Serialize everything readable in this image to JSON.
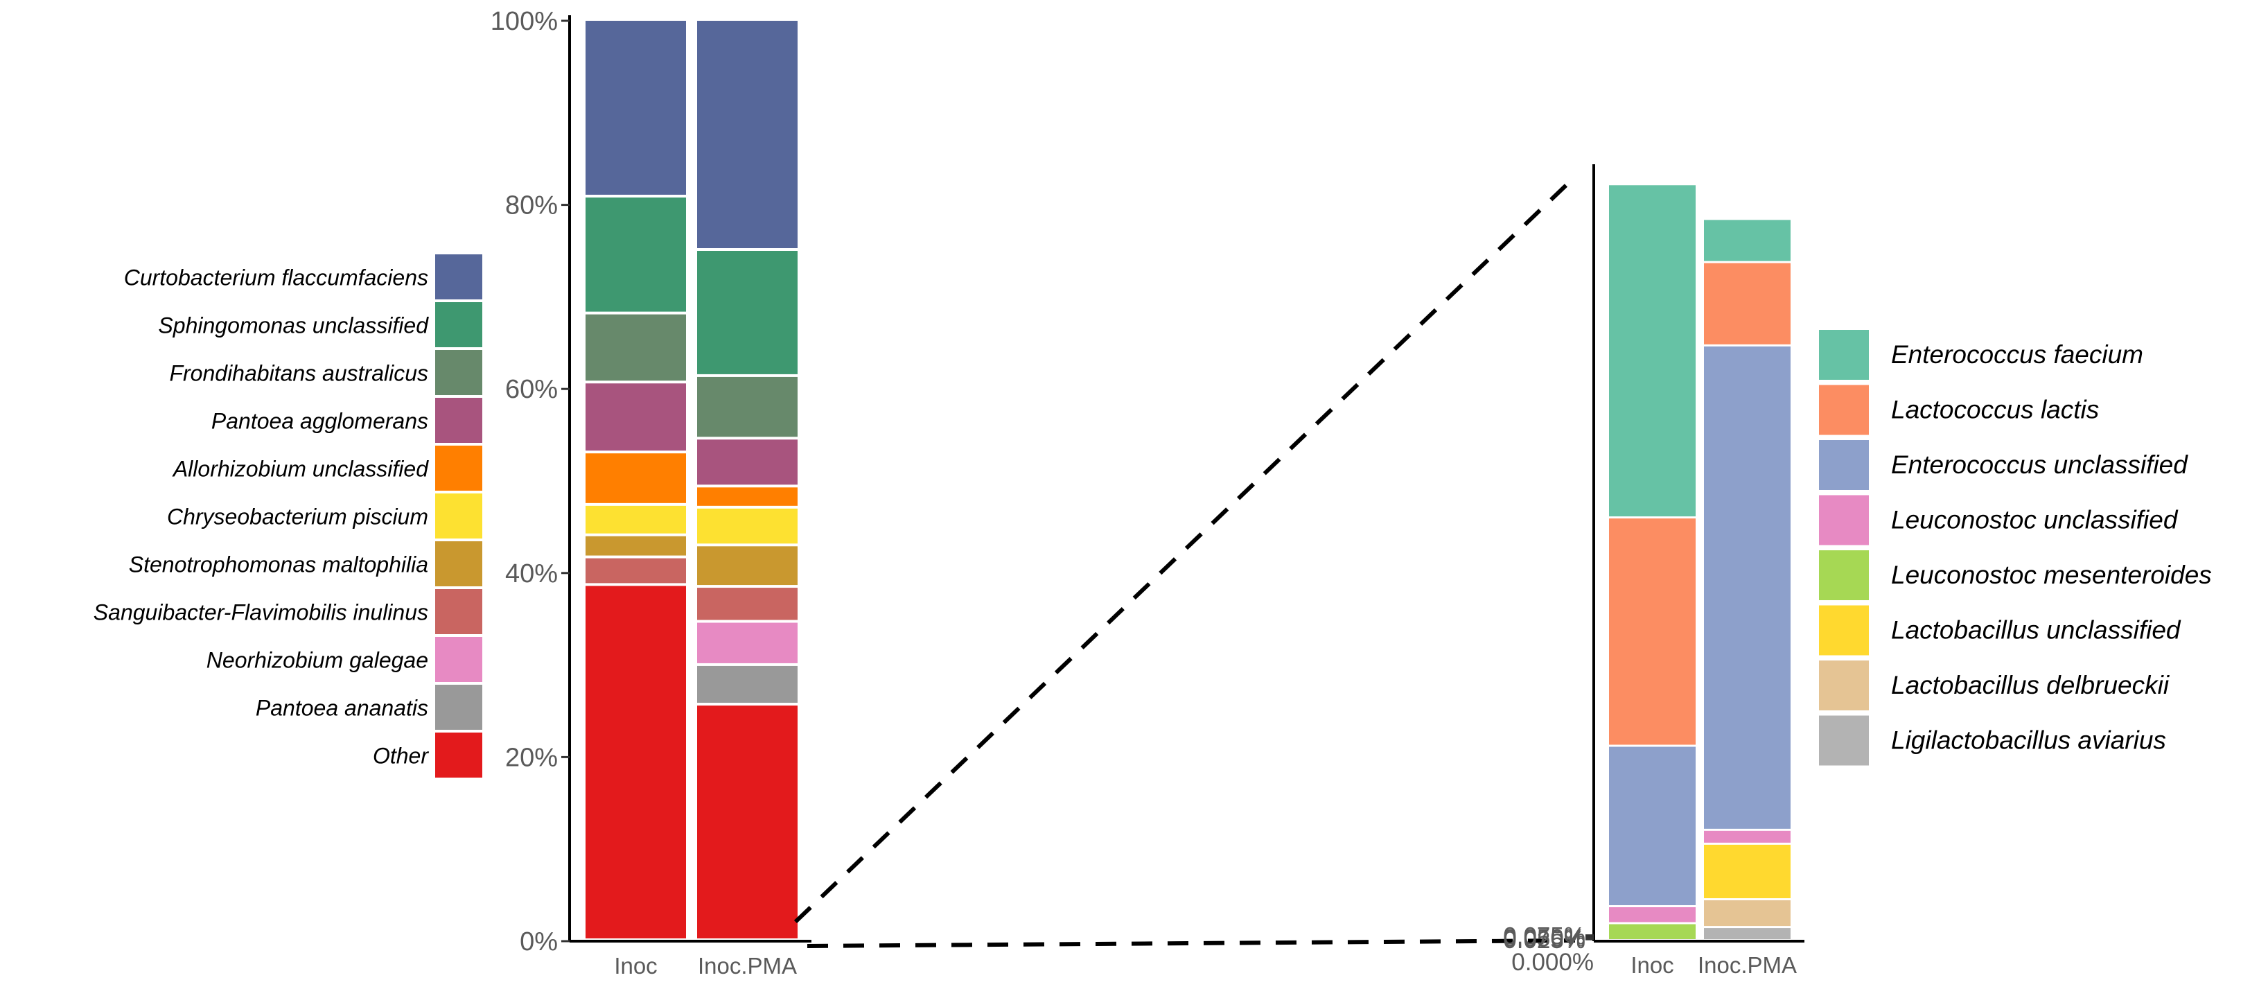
{
  "chart_data": [
    {
      "type": "bar",
      "stacked": true,
      "title": "",
      "xlabel": "",
      "ylabel": "",
      "categories": [
        "Inoc",
        "Inoc.PMA"
      ],
      "ylim": [
        0,
        1
      ],
      "y_ticks": [
        "0%",
        "20%",
        "40%",
        "60%",
        "80%",
        "100%"
      ],
      "legend_position": "left",
      "series": [
        {
          "name": "Other",
          "color": "#e31a1c",
          "values": [
            0.386,
            0.256
          ]
        },
        {
          "name": "Pantoea ananatis",
          "color": "#999999",
          "values": [
            0.0,
            0.043
          ]
        },
        {
          "name": "Neorhizobium galegae",
          "color": "#e78ac3",
          "values": [
            0.0,
            0.047
          ]
        },
        {
          "name": "Sanguibacter-Flavimobilis inulinus",
          "color": "#c96561",
          "values": [
            0.03,
            0.038
          ]
        },
        {
          "name": "Stenotrophomonas maltophilia",
          "color": "#c9982f",
          "values": [
            0.024,
            0.045
          ]
        },
        {
          "name": "Chryseobacterium piscium",
          "color": "#fde131",
          "values": [
            0.033,
            0.041
          ]
        },
        {
          "name": "Allorhizobium  unclassified",
          "color": "#ff7f00",
          "values": [
            0.057,
            0.023
          ]
        },
        {
          "name": "Pantoea agglomerans",
          "color": "#a8547e",
          "values": [
            0.076,
            0.052
          ]
        },
        {
          "name": "Frondihabitans australicus",
          "color": "#67896b",
          "values": [
            0.075,
            0.068
          ]
        },
        {
          "name": "Sphingomonas unclassified",
          "color": "#3e9870",
          "values": [
            0.127,
            0.137
          ]
        },
        {
          "name": "Curtobacterium flaccumfaciens",
          "color": "#56679a",
          "values": [
            0.192,
            0.25
          ]
        }
      ],
      "legend_order": [
        "Curtobacterium flaccumfaciens",
        "Sphingomonas unclassified",
        "Frondihabitans australicus",
        "Pantoea agglomerans",
        "Allorhizobium  unclassified",
        "Chryseobacterium piscium",
        "Stenotrophomonas maltophilia",
        "Sanguibacter-Flavimobilis inulinus",
        "Neorhizobium galegae",
        "Pantoea ananatis",
        "Other"
      ]
    },
    {
      "type": "bar",
      "stacked": true,
      "title": "",
      "xlabel": "",
      "ylabel": "",
      "categories": [
        "Inoc",
        "Inoc.PMA"
      ],
      "ylim": [
        0,
        0.1
      ],
      "y_ticks": [
        "0.000%",
        "0.025%",
        "0.050%",
        "0.075%"
      ],
      "legend_position": "right",
      "series": [
        {
          "name": "Ligilactobacillus aviarius",
          "color": "#b3b3b3",
          "values": [
            0.0,
            0.0017
          ]
        },
        {
          "name": "Lactobacillus delbrueckii",
          "color": "#e5c494",
          "values": [
            0.0,
            0.0036
          ]
        },
        {
          "name": "Lactobacillus unclassified",
          "color": "#ffd92f",
          "values": [
            0.0,
            0.0072
          ]
        },
        {
          "name": "Leuconostoc mesenteroides",
          "color": "#a6d854",
          "values": [
            0.0022,
            0.0
          ]
        },
        {
          "name": "Leuconostoc unclassified",
          "color": "#e78ac3",
          "values": [
            0.0022,
            0.0018
          ]
        },
        {
          "name": "Enterococcus unclassified",
          "color": "#8da0cb",
          "values": [
            0.0208,
            0.0628
          ]
        },
        {
          "name": "Lactococcus lactis",
          "color": "#fc8d62",
          "values": [
            0.0296,
            0.0108
          ]
        },
        {
          "name": "Enterococcus faecium",
          "color": "#66c2a5",
          "values": [
            0.0432,
            0.0056
          ]
        }
      ],
      "legend_order": [
        "Enterococcus faecium",
        "Lactococcus lactis",
        "Enterococcus unclassified",
        "Leuconostoc unclassified",
        "Leuconostoc mesenteroides",
        "Lactobacillus unclassified",
        "Lactobacillus delbrueckii",
        "Ligilactobacillus aviarius"
      ]
    }
  ]
}
